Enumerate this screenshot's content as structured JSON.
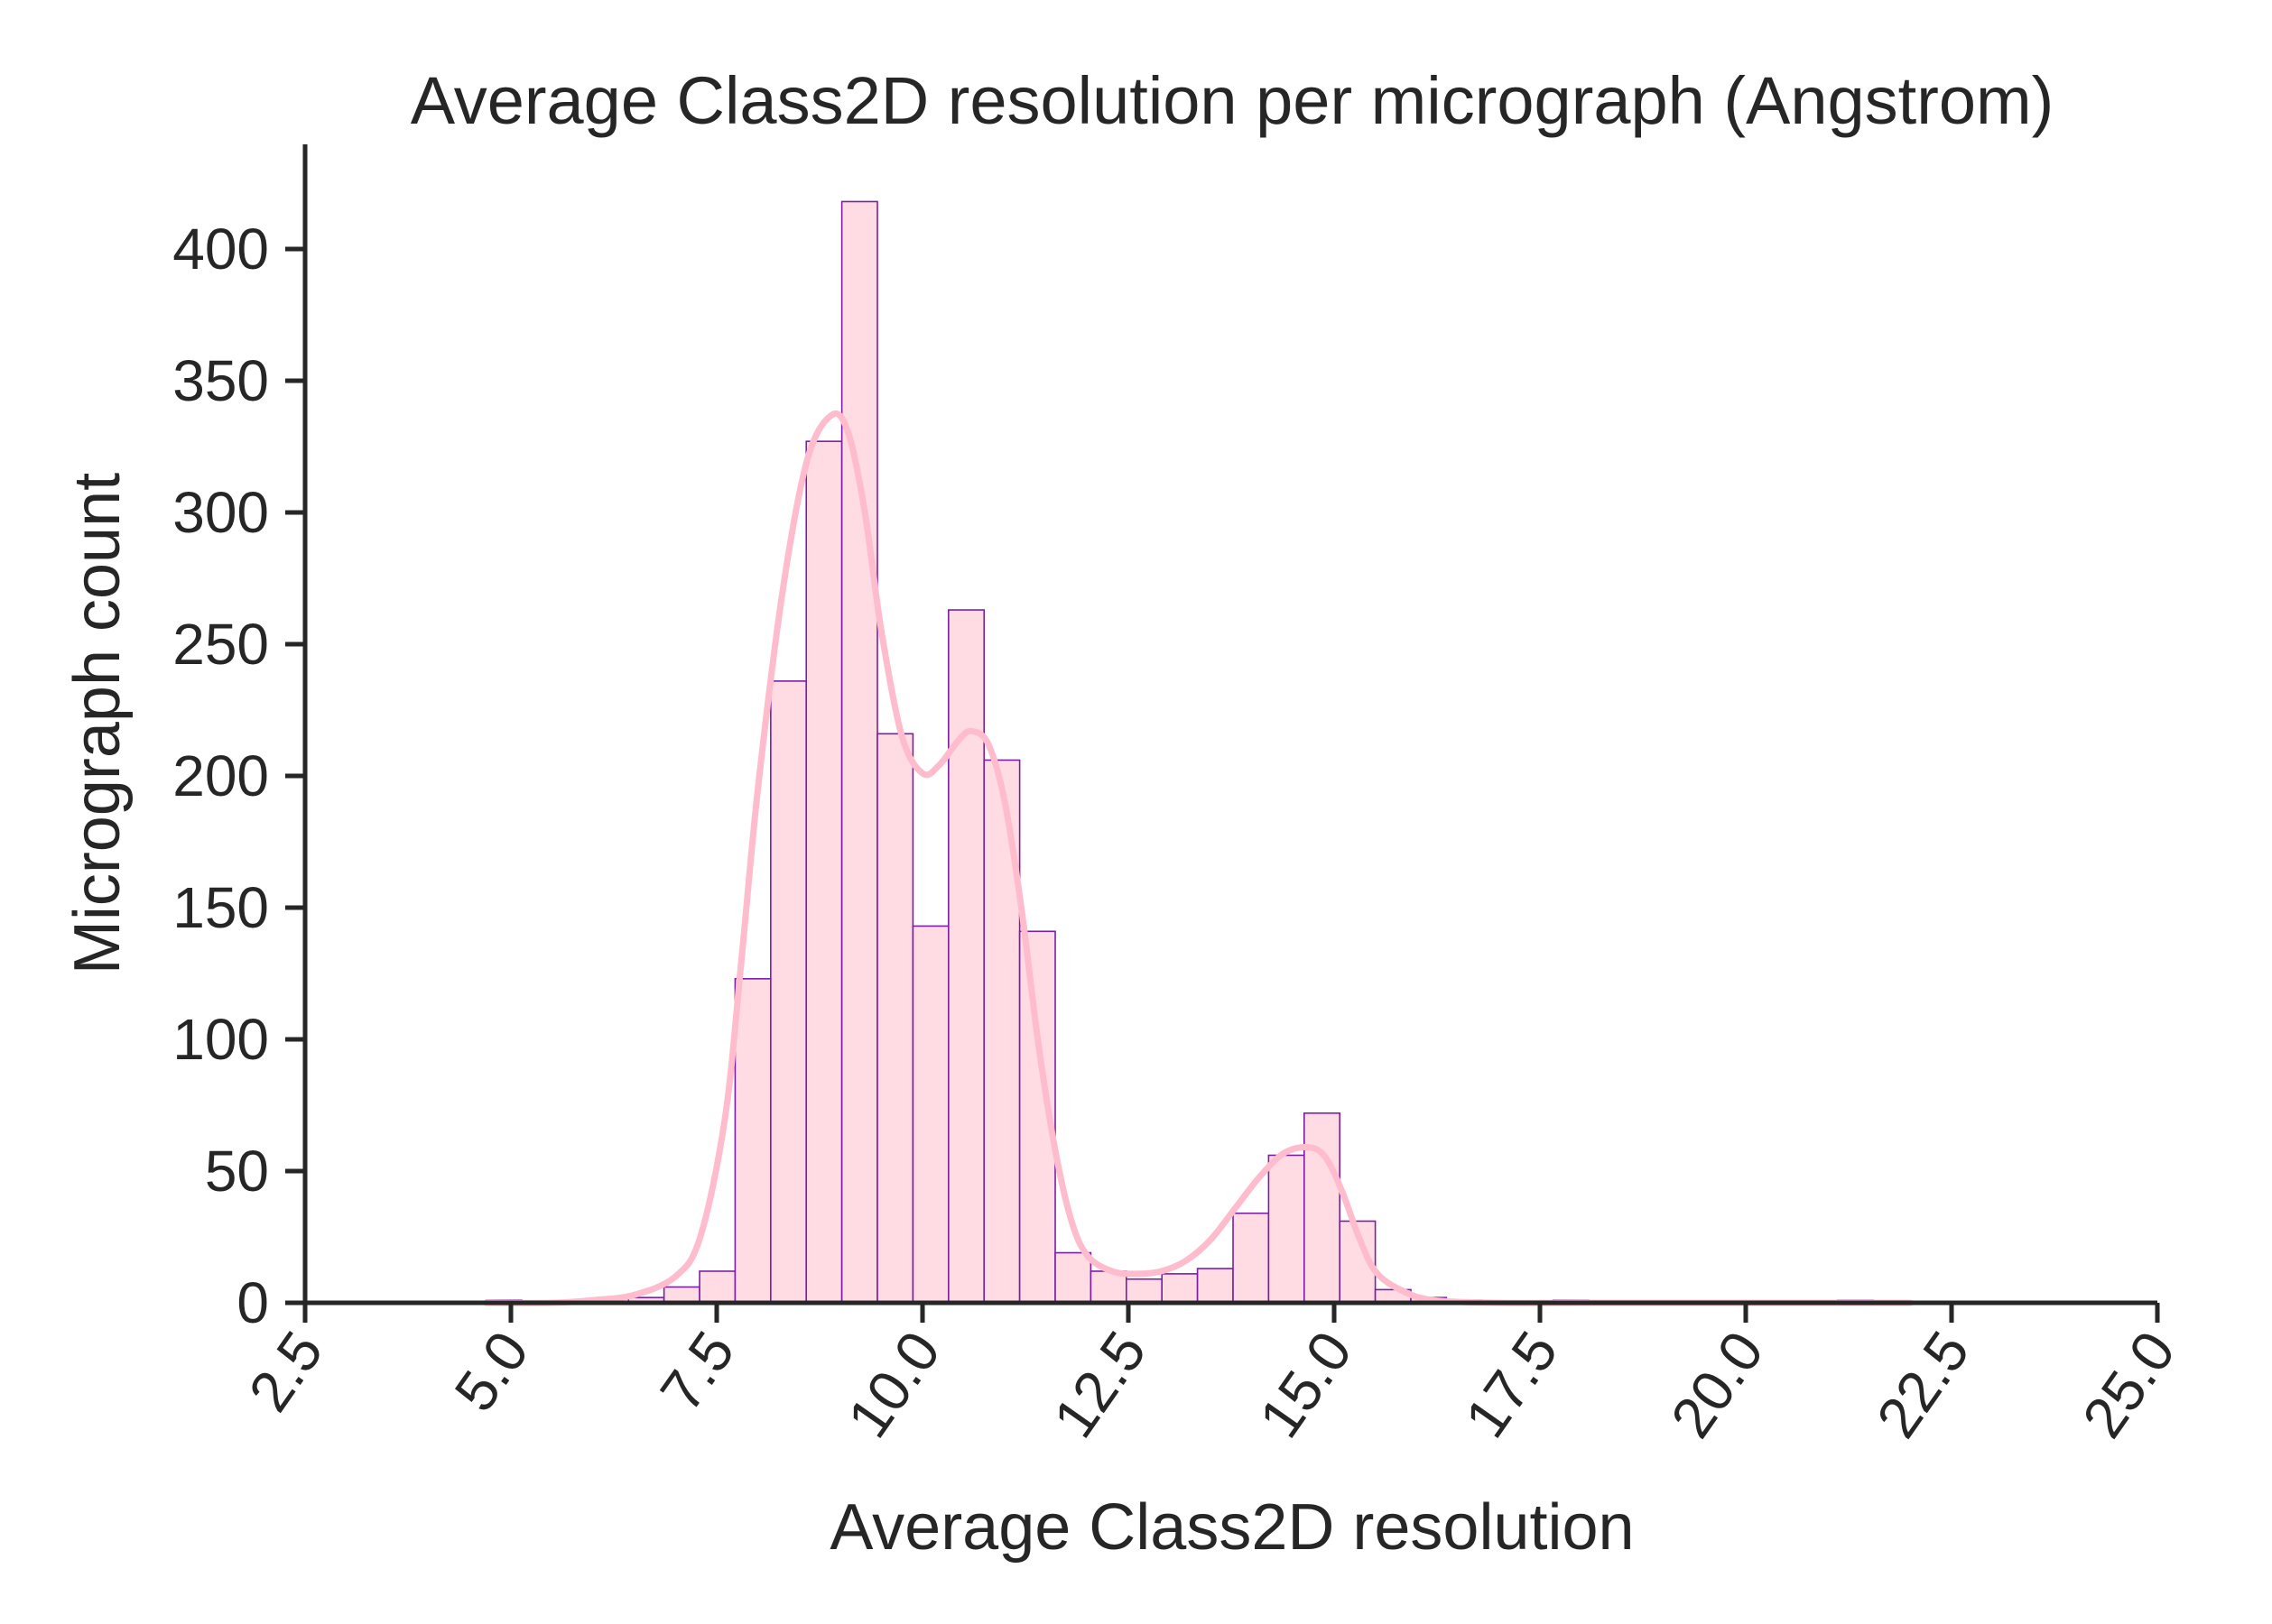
{
  "chart_data": {
    "type": "bar",
    "title": "Average Class2D resolution per micrograph (Angstrom)",
    "xlabel": "Average Class2D resolution",
    "ylabel": "Micrograph count",
    "xlim": [
      2.5,
      25.0
    ],
    "ylim": [
      0,
      440
    ],
    "xticks": [
      "2.5",
      "5.0",
      "7.5",
      "10.0",
      "12.5",
      "15.0",
      "17.5",
      "20.0",
      "22.5",
      "25.0"
    ],
    "yticks": [
      "0",
      "50",
      "100",
      "150",
      "200",
      "250",
      "300",
      "350",
      "400"
    ],
    "grid": false,
    "legend": "none",
    "bin_width": 0.432,
    "bins": [
      {
        "x0": 4.7,
        "x1": 5.132,
        "count": 1
      },
      {
        "x0": 6.428,
        "x1": 6.86,
        "count": 2
      },
      {
        "x0": 6.86,
        "x1": 7.292,
        "count": 6
      },
      {
        "x0": 7.292,
        "x1": 7.724,
        "count": 12
      },
      {
        "x0": 7.724,
        "x1": 8.156,
        "count": 123
      },
      {
        "x0": 8.156,
        "x1": 8.588,
        "count": 236
      },
      {
        "x0": 8.588,
        "x1": 9.02,
        "count": 327
      },
      {
        "x0": 9.02,
        "x1": 9.452,
        "count": 418
      },
      {
        "x0": 9.452,
        "x1": 9.884,
        "count": 216
      },
      {
        "x0": 9.884,
        "x1": 10.316,
        "count": 143
      },
      {
        "x0": 10.316,
        "x1": 10.748,
        "count": 263
      },
      {
        "x0": 10.748,
        "x1": 11.18,
        "count": 206
      },
      {
        "x0": 11.18,
        "x1": 11.612,
        "count": 141
      },
      {
        "x0": 11.612,
        "x1": 12.044,
        "count": 19
      },
      {
        "x0": 12.044,
        "x1": 12.476,
        "count": 12
      },
      {
        "x0": 12.476,
        "x1": 12.908,
        "count": 9
      },
      {
        "x0": 12.908,
        "x1": 13.34,
        "count": 11
      },
      {
        "x0": 13.34,
        "x1": 13.772,
        "count": 13
      },
      {
        "x0": 13.772,
        "x1": 14.204,
        "count": 34
      },
      {
        "x0": 14.204,
        "x1": 14.636,
        "count": 56
      },
      {
        "x0": 14.636,
        "x1": 15.068,
        "count": 72
      },
      {
        "x0": 15.068,
        "x1": 15.5,
        "count": 31
      },
      {
        "x0": 15.5,
        "x1": 15.932,
        "count": 5
      },
      {
        "x0": 15.932,
        "x1": 16.364,
        "count": 2
      },
      {
        "x0": 16.364,
        "x1": 16.796,
        "count": 1
      },
      {
        "x0": 17.66,
        "x1": 18.092,
        "count": 1
      },
      {
        "x0": 21.116,
        "x1": 21.548,
        "count": 1
      }
    ],
    "kde": [
      [
        4.7,
        0
      ],
      [
        5.5,
        0
      ],
      [
        6.0,
        1
      ],
      [
        6.5,
        3
      ],
      [
        7.0,
        10
      ],
      [
        7.3,
        25
      ],
      [
        7.6,
        70
      ],
      [
        7.8,
        130
      ],
      [
        8.0,
        195
      ],
      [
        8.3,
        270
      ],
      [
        8.6,
        320
      ],
      [
        8.9,
        337
      ],
      [
        9.1,
        330
      ],
      [
        9.3,
        300
      ],
      [
        9.5,
        255
      ],
      [
        9.75,
        215
      ],
      [
        10.0,
        201
      ],
      [
        10.2,
        204
      ],
      [
        10.45,
        214
      ],
      [
        10.6,
        217
      ],
      [
        10.8,
        212
      ],
      [
        11.0,
        190
      ],
      [
        11.2,
        150
      ],
      [
        11.4,
        100
      ],
      [
        11.6,
        60
      ],
      [
        11.8,
        32
      ],
      [
        12.0,
        18
      ],
      [
        12.3,
        12
      ],
      [
        12.6,
        11
      ],
      [
        12.9,
        12
      ],
      [
        13.2,
        16
      ],
      [
        13.5,
        24
      ],
      [
        13.8,
        36
      ],
      [
        14.1,
        48
      ],
      [
        14.4,
        57
      ],
      [
        14.7,
        59
      ],
      [
        14.9,
        55
      ],
      [
        15.1,
        42
      ],
      [
        15.3,
        25
      ],
      [
        15.5,
        12
      ],
      [
        15.8,
        5
      ],
      [
        16.2,
        1
      ],
      [
        17.0,
        0
      ],
      [
        18.0,
        0
      ],
      [
        20.0,
        0
      ],
      [
        22.0,
        0
      ]
    ],
    "colors": {
      "bar_fill": "#ffdce4",
      "bar_edge": "#7b1fa2",
      "kde_line": "#ffbccc",
      "axis": "#262626"
    }
  }
}
